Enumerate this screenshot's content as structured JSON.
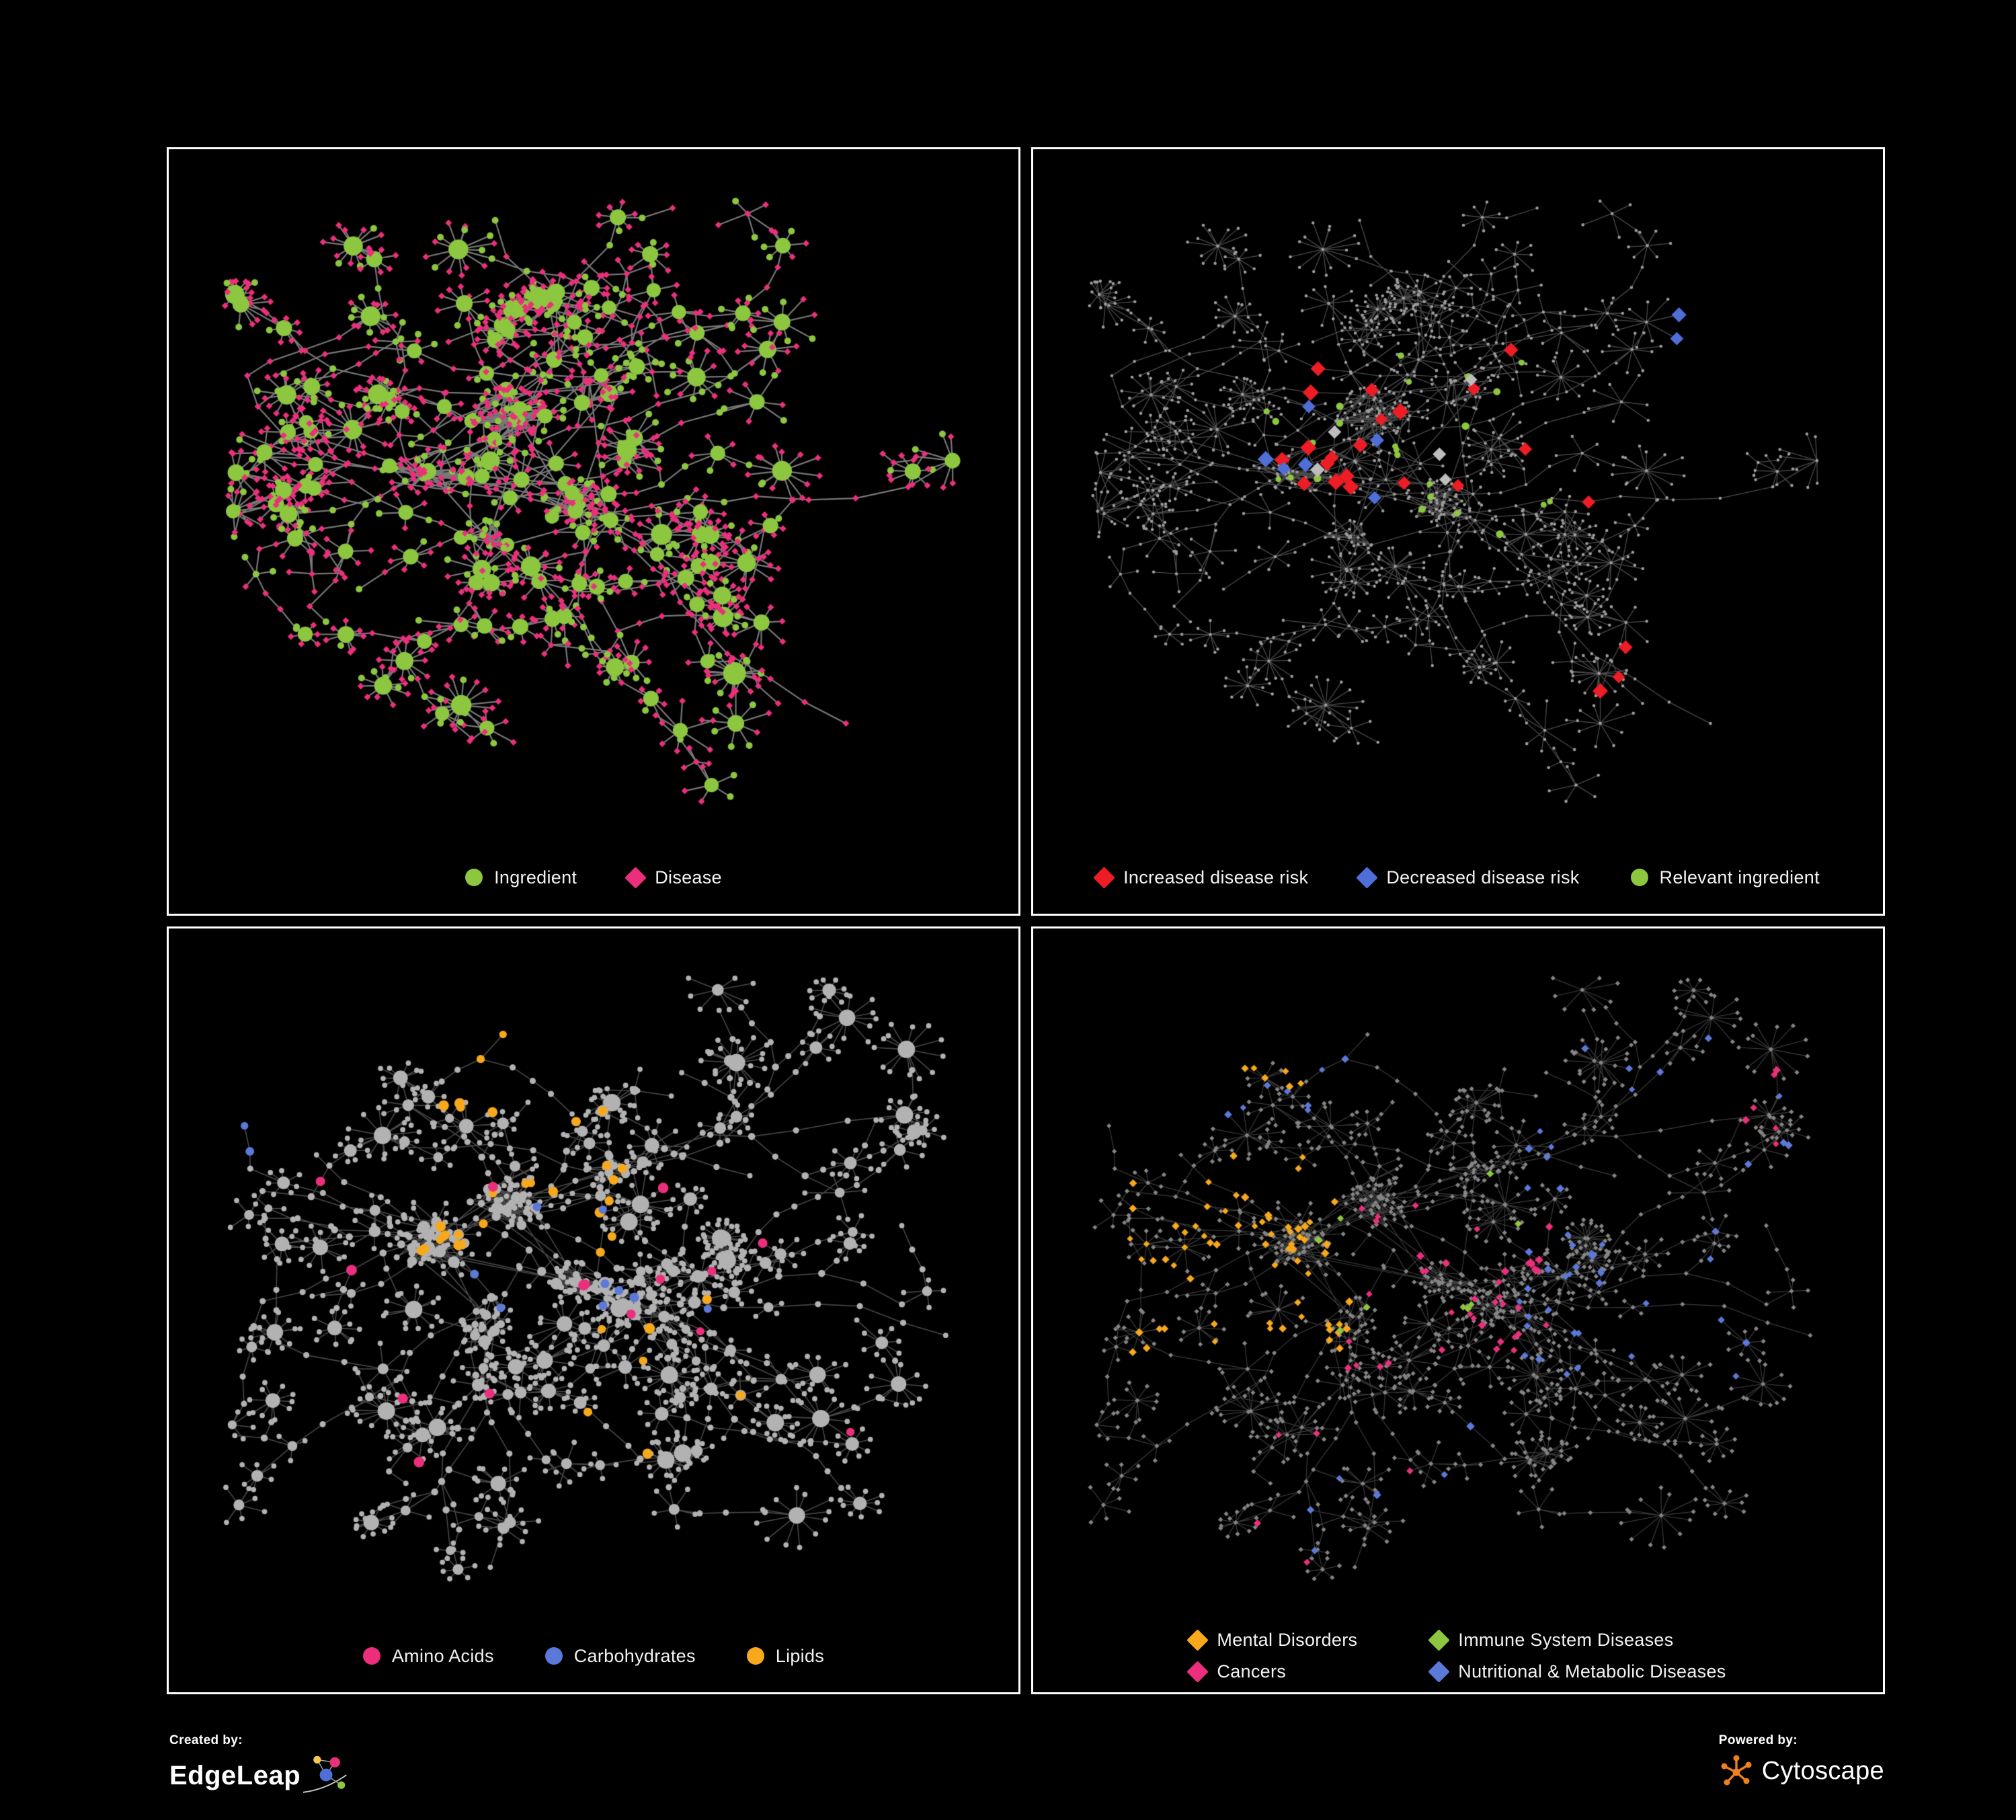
{
  "page": {
    "background": "#000000",
    "panel_background": "#000000",
    "panel_border_color": "#ffffff"
  },
  "panels": [
    {
      "id": "ingredient-disease",
      "legend": [
        {
          "label": "Ingredient",
          "shape": "circle",
          "color": "#8dc63f"
        },
        {
          "label": "Disease",
          "shape": "diamond",
          "color": "#ec2f7c"
        }
      ],
      "net": {
        "seed": 41,
        "mode": "bipartite",
        "edge_color": "rgba(150,150,150,0.8)",
        "edge_width": 2.2,
        "hub_min_degree": 6,
        "green_leaf_prob": 0.27,
        "hub_size": [
          8,
          17
        ],
        "node_size": 5
      }
    },
    {
      "id": "disease-risk",
      "legend": [
        {
          "label": "Increased disease risk",
          "shape": "diamond",
          "color": "#ee1c25"
        },
        {
          "label": "Decreased disease risk",
          "shape": "diamond",
          "color": "#4f6fd8"
        },
        {
          "label": "Relevant ingredient",
          "shape": "circle",
          "color": "#8dc63f"
        }
      ],
      "net": {
        "seed": 41,
        "mode": "plain",
        "edge_color": "rgba(150,150,150,0.5)",
        "edge_width": 1.3,
        "base": {
          "shape": "circle",
          "size": 2.3,
          "color": "#9c9c9c",
          "size_by_degree": false
        },
        "highlights": [
          {
            "shape": "circle",
            "color": "#8dc63f",
            "size": 5,
            "count": 24,
            "region": [
              0.24,
              0.62,
              0.26,
              0.56
            ]
          },
          {
            "shape": "diamond",
            "color": "#ee1c25",
            "size": 11,
            "count": 20,
            "region": [
              0.22,
              0.68,
              0.24,
              0.58
            ]
          },
          {
            "shape": "diamond",
            "color": "#ee1c25",
            "size": 11,
            "count": 3,
            "region": [
              0.6,
              0.85,
              0.65,
              0.88
            ]
          },
          {
            "shape": "diamond",
            "color": "#4f6fd8",
            "size": 11,
            "count": 6,
            "region": [
              0.24,
              0.45,
              0.3,
              0.52
            ]
          },
          {
            "shape": "diamond",
            "color": "#4f6fd8",
            "size": 11,
            "count": 2,
            "region": [
              0.78,
              0.97,
              0.16,
              0.35
            ]
          },
          {
            "shape": "diamond",
            "color": "#bdbdbd",
            "size": 10,
            "count": 6,
            "region": [
              0.28,
              0.6,
              0.3,
              0.55
            ]
          }
        ]
      }
    },
    {
      "id": "macronutrients",
      "legend": [
        {
          "label": "Amino Acids",
          "shape": "circle",
          "color": "#ec2f7c"
        },
        {
          "label": "Carbohydrates",
          "shape": "circle",
          "color": "#5b79d9"
        },
        {
          "label": "Lipids",
          "shape": "circle",
          "color": "#f7a81b"
        }
      ],
      "net": {
        "seed": 87,
        "mode": "plain",
        "edge_color": "rgba(150,150,150,0.48)",
        "edge_width": 1.6,
        "base": {
          "shape": "circle",
          "size": 3.2,
          "color": "#b2b2b2",
          "size_by_degree": true
        },
        "highlights": [
          {
            "shape": "circle",
            "color": "#f7a81b",
            "size": 7,
            "count": 26,
            "region": [
              0.26,
              0.56,
              0.18,
              0.46
            ]
          },
          {
            "shape": "circle",
            "color": "#f7a81b",
            "size": 7,
            "count": 7,
            "region": [
              0.45,
              0.72,
              0.52,
              0.8
            ]
          },
          {
            "shape": "circle",
            "color": "#f7a81b",
            "size": 6,
            "count": 3,
            "region": [
              0.15,
              0.45,
              0.03,
              0.16
            ]
          },
          {
            "shape": "circle",
            "color": "#ec2f7c",
            "size": 7,
            "count": 9,
            "region": [
              0.05,
              0.55,
              0.05,
              0.95
            ]
          },
          {
            "shape": "circle",
            "color": "#ec2f7c",
            "size": 7,
            "count": 6,
            "region": [
              0.55,
              0.85,
              0.3,
              0.85
            ]
          },
          {
            "shape": "circle",
            "color": "#5b79d9",
            "size": 6.5,
            "count": 7,
            "region": [
              0.33,
              0.55,
              0.38,
              0.55
            ]
          },
          {
            "shape": "circle",
            "color": "#5b79d9",
            "size": 6.5,
            "count": 2,
            "region": [
              0.0,
              0.15,
              0.12,
              0.3
            ]
          },
          {
            "shape": "circle",
            "color": "#5b79d9",
            "size": 6.5,
            "count": 2,
            "region": [
              0.55,
              0.7,
              0.5,
              0.65
            ]
          }
        ]
      }
    },
    {
      "id": "disease-classes",
      "legend": [
        {
          "label": "Mental Disorders",
          "shape": "diamond",
          "color": "#f7a81b"
        },
        {
          "label": "Immune System Diseases",
          "shape": "diamond",
          "color": "#8dc63f"
        },
        {
          "label": "Cancers",
          "shape": "diamond",
          "color": "#ec2f7c"
        },
        {
          "label": "Nutritional & Metabolic Diseases",
          "shape": "diamond",
          "color": "#5b79d9"
        }
      ],
      "net": {
        "seed": 87,
        "mode": "plain",
        "edge_color": "rgba(140,140,140,0.42)",
        "edge_width": 1.2,
        "base": {
          "shape": "diamond",
          "size": 3.6,
          "color": "#858585",
          "size_by_degree": false
        },
        "highlights": [
          {
            "shape": "diamond",
            "color": "#f7a81b",
            "size": 5.5,
            "count": 70,
            "region": [
              0.07,
              0.36,
              0.3,
              0.62
            ]
          },
          {
            "shape": "diamond",
            "color": "#f7a81b",
            "size": 5.5,
            "count": 6,
            "region": [
              0.1,
              0.3,
              0.05,
              0.2
            ]
          },
          {
            "shape": "diamond",
            "color": "#ec2f7c",
            "size": 5.5,
            "count": 40,
            "region": [
              0.34,
              0.62,
              0.38,
              0.64
            ]
          },
          {
            "shape": "diamond",
            "color": "#ec2f7c",
            "size": 5.5,
            "count": 6,
            "region": [
              0.8,
              0.97,
              0.16,
              0.32
            ]
          },
          {
            "shape": "diamond",
            "color": "#ec2f7c",
            "size": 5.5,
            "count": 5,
            "region": [
              0.2,
              0.5,
              0.7,
              0.95
            ]
          },
          {
            "shape": "diamond",
            "color": "#5b79d9",
            "size": 5.5,
            "count": 46,
            "region": [
              0.58,
              0.97,
              0.1,
              0.65
            ]
          },
          {
            "shape": "diamond",
            "color": "#5b79d9",
            "size": 5.5,
            "count": 8,
            "region": [
              0.05,
              0.4,
              0.03,
              0.25
            ]
          },
          {
            "shape": "diamond",
            "color": "#5b79d9",
            "size": 5.5,
            "count": 6,
            "region": [
              0.3,
              0.6,
              0.72,
              0.95
            ]
          },
          {
            "shape": "diamond",
            "color": "#8dc63f",
            "size": 5.5,
            "count": 9,
            "region": [
              0.3,
              0.65,
              0.25,
              0.6
            ]
          }
        ]
      }
    }
  ],
  "footer": {
    "created_by_label": "Created by:",
    "edgeleap_name": "EdgeLeap",
    "powered_by_label": "Powered by:",
    "cytoscape_name": "Cytoscape",
    "edgeleap_colors": [
      "#f2c94c",
      "#ec2f7c",
      "#4f6fd8",
      "#8dc63f"
    ],
    "cytoscape_color": "#f07f1e"
  }
}
